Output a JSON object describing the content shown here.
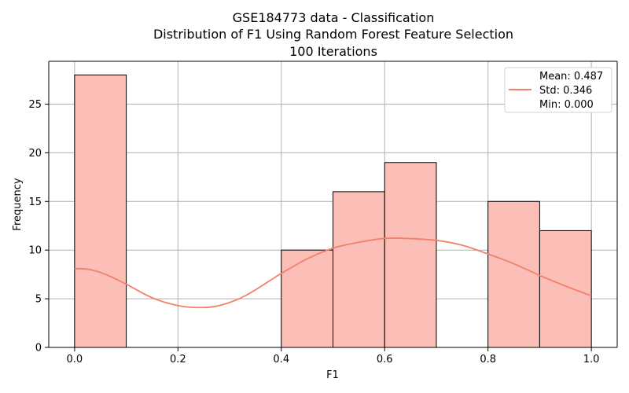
{
  "chart_data": {
    "type": "histogram",
    "title_lines": [
      "GSE184773 data - Classification",
      "Distribution of F1 Using Random Forest Feature Selection",
      "100 Iterations"
    ],
    "xlabel": "F1",
    "ylabel": "Frequency",
    "xlim": [
      -0.05,
      1.05
    ],
    "ylim": [
      0,
      29.4
    ],
    "xticks": [
      0.0,
      0.2,
      0.4,
      0.6,
      0.8,
      1.0
    ],
    "xtick_labels": [
      "0.0",
      "0.2",
      "0.4",
      "0.6",
      "0.8",
      "1.0"
    ],
    "yticks": [
      0,
      5,
      10,
      15,
      20,
      25
    ],
    "ytick_labels": [
      "0",
      "5",
      "10",
      "15",
      "20",
      "25"
    ],
    "grid": true,
    "bins": [
      {
        "x0": 0.0,
        "x1": 0.1,
        "count": 28
      },
      {
        "x0": 0.1,
        "x1": 0.2,
        "count": 0
      },
      {
        "x0": 0.2,
        "x1": 0.3,
        "count": 0
      },
      {
        "x0": 0.3,
        "x1": 0.4,
        "count": 0
      },
      {
        "x0": 0.4,
        "x1": 0.5,
        "count": 10
      },
      {
        "x0": 0.5,
        "x1": 0.6,
        "count": 16
      },
      {
        "x0": 0.6,
        "x1": 0.7,
        "count": 19
      },
      {
        "x0": 0.7,
        "x1": 0.8,
        "count": 0
      },
      {
        "x0": 0.8,
        "x1": 0.9,
        "count": 15
      },
      {
        "x0": 0.9,
        "x1": 1.0,
        "count": 12
      }
    ],
    "kde_curve": {
      "x": [
        0.0,
        0.03,
        0.06,
        0.1,
        0.15,
        0.2,
        0.24,
        0.28,
        0.33,
        0.4,
        0.45,
        0.5,
        0.55,
        0.6,
        0.64,
        0.7,
        0.75,
        0.8,
        0.85,
        0.9,
        0.95,
        1.0
      ],
      "y": [
        8.1,
        8.0,
        7.5,
        6.5,
        5.1,
        4.3,
        4.1,
        4.3,
        5.3,
        7.6,
        9.1,
        10.2,
        10.8,
        11.2,
        11.2,
        11.0,
        10.5,
        9.6,
        8.6,
        7.4,
        6.3,
        5.3
      ]
    },
    "legend": {
      "placement": "top-right",
      "lines": [
        "Mean: 0.487",
        "Std: 0.346",
        "Min: 0.000"
      ]
    },
    "colors": {
      "bar_fill": "#fbbfb8",
      "bar_edge": "#000000",
      "kde_line": "#f47f6b",
      "grid": "#b0b0b0",
      "axis": "#000000"
    }
  }
}
